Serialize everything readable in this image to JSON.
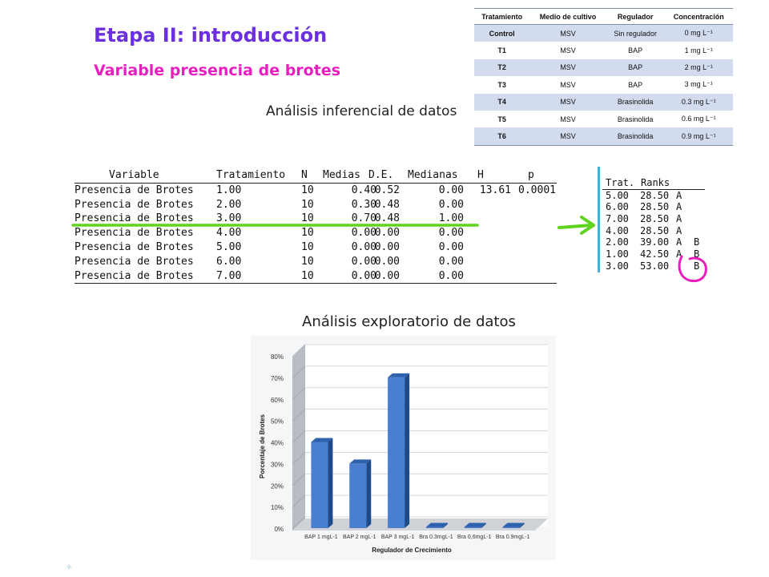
{
  "header": {
    "title": "Etapa II: introducción",
    "subtitle": "Variable presencia de brotes",
    "inferential_heading": "Análisis inferencial de datos",
    "exploratory_heading": "Análisis exploratorio de datos"
  },
  "treatment_table": {
    "headers": [
      "Tratamiento",
      "Medio de cultivo",
      "Regulador",
      "Concentración"
    ],
    "rows": [
      [
        "Control",
        "MSV",
        "Sin regulador",
        "0 mg L⁻¹"
      ],
      [
        "T1",
        "MSV",
        "BAP",
        "1 mg L⁻¹"
      ],
      [
        "T2",
        "MSV",
        "BAP",
        "2 mg L⁻¹"
      ],
      [
        "T3",
        "MSV",
        "BAP",
        "3 mg L⁻¹"
      ],
      [
        "T4",
        "MSV",
        "Brasinolida",
        "0.3 mg L⁻¹"
      ],
      [
        "T5",
        "MSV",
        "Brasinolida",
        "0.6 mg L⁻¹"
      ],
      [
        "T6",
        "MSV",
        "Brasinolida",
        "0.9 mg L⁻¹"
      ]
    ]
  },
  "kruskal": {
    "headers": [
      "Variable",
      "Tratamiento",
      "N",
      "Medias",
      "D.E.",
      "Medianas",
      "H",
      "p"
    ],
    "rows": [
      [
        "Presencia de Brotes",
        "1.00",
        "10",
        "0.40",
        "0.52",
        "0.00",
        "13.61",
        "0.0001"
      ],
      [
        "Presencia de Brotes",
        "2.00",
        "10",
        "0.30",
        "0.48",
        "0.00",
        "",
        ""
      ],
      [
        "Presencia de Brotes",
        "3.00",
        "10",
        "0.70",
        "0.48",
        "1.00",
        "",
        ""
      ],
      [
        "Presencia de Brotes",
        "4.00",
        "10",
        "0.00",
        "0.00",
        "0.00",
        "",
        ""
      ],
      [
        "Presencia de Brotes",
        "5.00",
        "10",
        "0.00",
        "0.00",
        "0.00",
        "",
        ""
      ],
      [
        "Presencia de Brotes",
        "6.00",
        "10",
        "0.00",
        "0.00",
        "0.00",
        "",
        ""
      ],
      [
        "Presencia de Brotes",
        "7.00",
        "10",
        "0.00",
        "0.00",
        "0.00",
        "",
        ""
      ]
    ]
  },
  "ranks": {
    "headers": [
      "Trat.",
      "Ranks"
    ],
    "rows": [
      [
        "5.00",
        "28.50",
        "A",
        ""
      ],
      [
        "6.00",
        "28.50",
        "A",
        ""
      ],
      [
        "7.00",
        "28.50",
        "A",
        ""
      ],
      [
        "4.00",
        "28.50",
        "A",
        ""
      ],
      [
        "2.00",
        "39.00",
        "A",
        "B"
      ],
      [
        "1.00",
        "42.50",
        "A",
        "B"
      ],
      [
        "3.00",
        "53.00",
        "",
        "B"
      ]
    ]
  },
  "annotations": {
    "highlight_color": "#5fd31f",
    "circle_color": "#e81fc0"
  },
  "chart_data": {
    "type": "bar",
    "categories": [
      "BAP 1 mgL-1",
      "BAP 2 mgL-1",
      "BAP 3 mgL-1",
      "Bra 0.3mgL-1",
      "Bra 0,6mgL-1",
      "Bra 0.9mgL-1"
    ],
    "values": [
      40,
      30,
      70,
      0,
      0,
      0
    ],
    "ylabel": "Porcentaje de Brotes",
    "xlabel": "Regulador de Crecimiento",
    "ylim": [
      0,
      80
    ],
    "yticks": [
      0,
      10,
      20,
      30,
      40,
      50,
      60,
      70,
      80
    ],
    "tick_suffix": "%",
    "grid": true,
    "bar_color": "#4a7fcf"
  }
}
